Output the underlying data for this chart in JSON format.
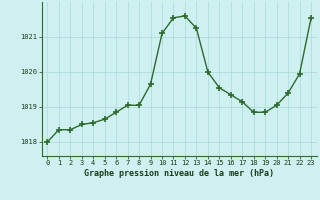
{
  "x": [
    0,
    1,
    2,
    3,
    4,
    5,
    6,
    7,
    8,
    9,
    10,
    11,
    12,
    13,
    14,
    15,
    16,
    17,
    18,
    19,
    20,
    21,
    22,
    23
  ],
  "y": [
    1018.0,
    1018.35,
    1018.35,
    1018.5,
    1018.55,
    1018.65,
    1018.85,
    1019.05,
    1019.05,
    1019.65,
    1021.1,
    1021.55,
    1021.6,
    1021.25,
    1020.0,
    1019.55,
    1019.35,
    1019.15,
    1018.85,
    1018.85,
    1019.05,
    1019.4,
    1019.95,
    1021.55
  ],
  "line_color": "#2d6a2d",
  "marker": "+",
  "marker_size": 4,
  "bg_color": "#cef0f0",
  "grid_color": "#aad8d8",
  "title": "Graphe pression niveau de la mer (hPa)",
  "xlim": [
    -0.5,
    23.5
  ],
  "ylim": [
    1017.6,
    1022.0
  ],
  "yticks": [
    1018,
    1019,
    1020,
    1021
  ],
  "xticks": [
    0,
    1,
    2,
    3,
    4,
    5,
    6,
    7,
    8,
    9,
    10,
    11,
    12,
    13,
    14,
    15,
    16,
    17,
    18,
    19,
    20,
    21,
    22,
    23
  ],
  "tick_fontsize": 5.0,
  "title_fontsize": 6.0,
  "title_color": "#1a3d1a",
  "tick_color": "#1a3d1a",
  "line_width": 1.0
}
